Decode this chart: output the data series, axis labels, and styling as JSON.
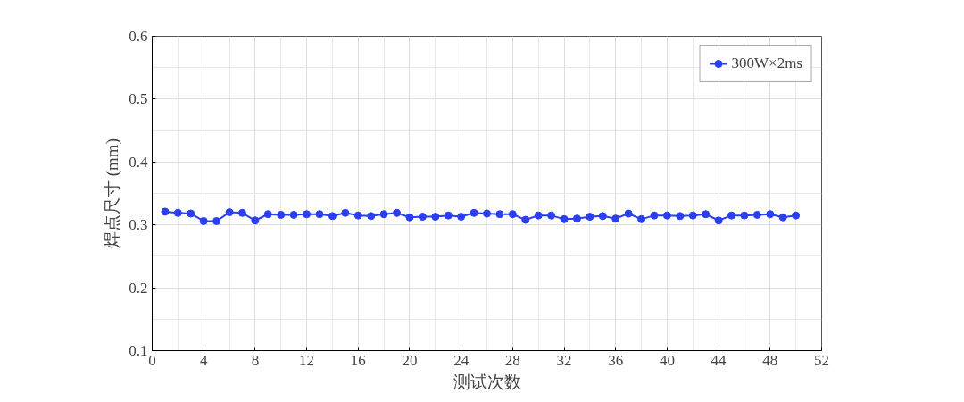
{
  "chart_data": {
    "type": "line",
    "xlabel": "测试次数",
    "ylabel": "焊点尺寸 (mm)",
    "x": [
      1,
      2,
      3,
      4,
      5,
      6,
      7,
      8,
      9,
      10,
      11,
      12,
      13,
      14,
      15,
      16,
      17,
      18,
      19,
      20,
      21,
      22,
      23,
      24,
      25,
      26,
      27,
      28,
      29,
      30,
      31,
      32,
      33,
      34,
      35,
      36,
      37,
      38,
      39,
      40,
      41,
      42,
      43,
      44,
      45,
      46,
      47,
      48,
      49,
      50
    ],
    "series": [
      {
        "name": "300W×2ms",
        "color": "#2a3ff0",
        "values": [
          0.321,
          0.319,
          0.318,
          0.306,
          0.306,
          0.32,
          0.319,
          0.307,
          0.317,
          0.316,
          0.316,
          0.317,
          0.317,
          0.314,
          0.319,
          0.315,
          0.314,
          0.317,
          0.319,
          0.312,
          0.313,
          0.313,
          0.315,
          0.313,
          0.319,
          0.318,
          0.317,
          0.317,
          0.308,
          0.315,
          0.315,
          0.309,
          0.31,
          0.313,
          0.314,
          0.31,
          0.318,
          0.309,
          0.315,
          0.315,
          0.314,
          0.315,
          0.317,
          0.307,
          0.315,
          0.315,
          0.316,
          0.317,
          0.312,
          0.315
        ]
      }
    ],
    "xlim": [
      0,
      52
    ],
    "xticks": [
      0,
      4,
      8,
      12,
      16,
      20,
      24,
      28,
      32,
      36,
      40,
      44,
      48,
      52
    ],
    "ylim": [
      0.1,
      0.6
    ],
    "yticks": [
      {
        "value": 0.1,
        "label": "0.1"
      },
      {
        "value": 0.2,
        "label": "0.2"
      },
      {
        "value": 0.3,
        "label": "0.3"
      },
      {
        "value": 0.4,
        "label": "0.4"
      },
      {
        "value": 0.5,
        "label": "0.5"
      },
      {
        "value": 0.6,
        "label": "0.6"
      }
    ],
    "grid": true,
    "legend": "top right",
    "marker": "circle",
    "line_style": "solid"
  }
}
